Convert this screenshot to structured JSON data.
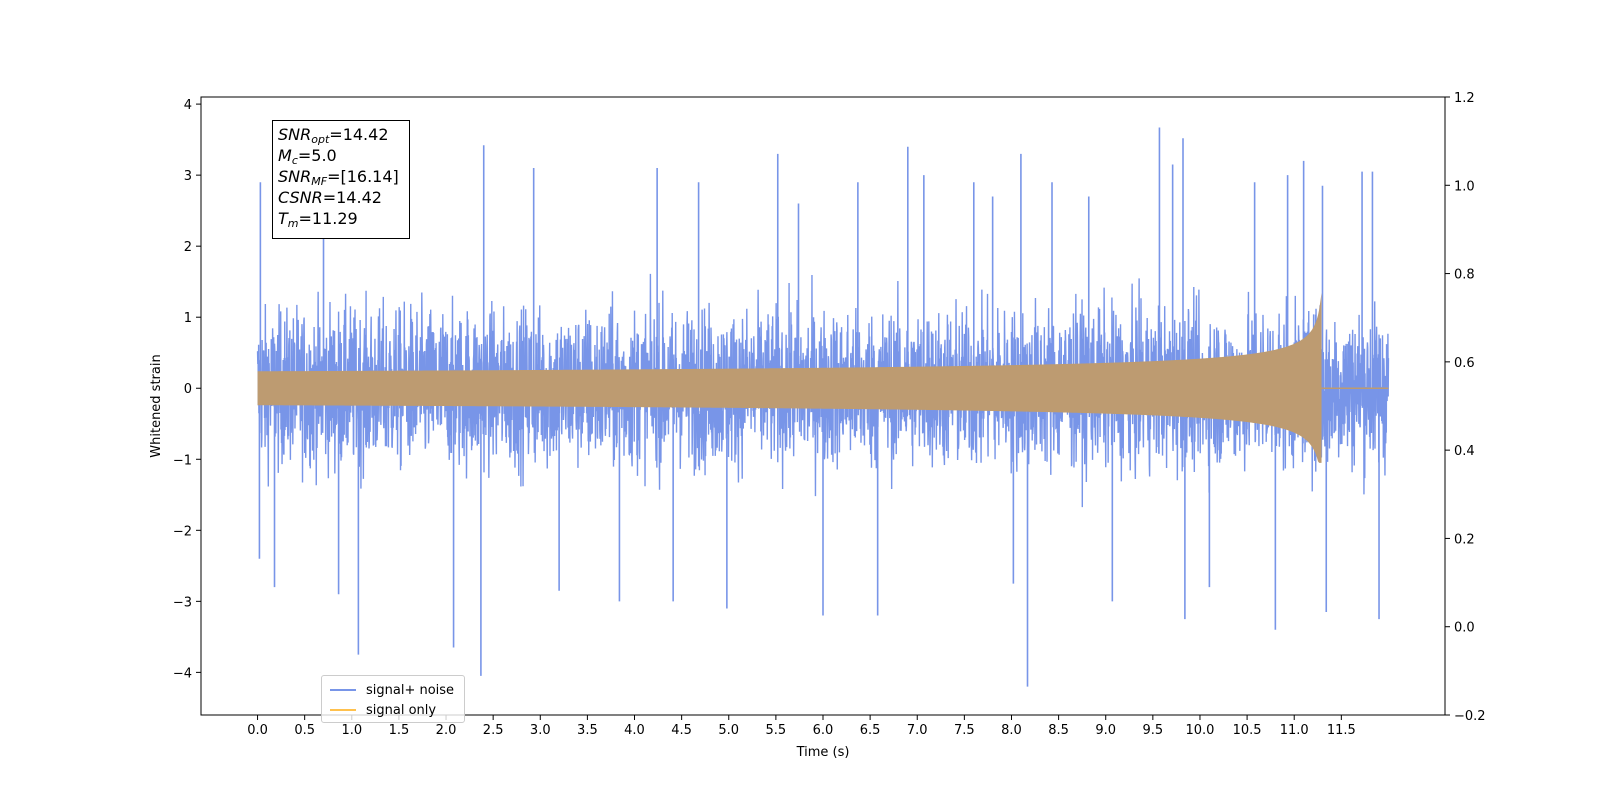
{
  "chart_data": {
    "type": "line",
    "title": "",
    "xlabel": "Time (s)",
    "ylabel": "Whitened strain",
    "xlim": [
      -0.6,
      12.6
    ],
    "ylim": [
      -4.6,
      4.1
    ],
    "y2lim": [
      -0.2,
      1.2
    ],
    "x_ticks": [
      "0.0",
      "0.5",
      "1.0",
      "1.5",
      "2.0",
      "2.5",
      "3.0",
      "3.5",
      "4.0",
      "4.5",
      "5.0",
      "5.5",
      "6.0",
      "6.5",
      "7.0",
      "7.5",
      "8.0",
      "8.5",
      "9.0",
      "9.5",
      "10.0",
      "10.5",
      "11.0",
      "11.5"
    ],
    "y_ticks": [
      "−4",
      "−3",
      "−2",
      "−1",
      "0",
      "1",
      "2",
      "3",
      "4"
    ],
    "y2_ticks": [
      "−0.2",
      "0.0",
      "0.2",
      "0.4",
      "0.6",
      "0.8",
      "1.0",
      "1.2"
    ],
    "grid": false,
    "legend_position": "lower-left",
    "series": [
      {
        "name": "signal+ noise",
        "color": "#7895e8",
        "x_range": [
          0.0,
          12.0
        ],
        "envelope_typical": 1.7,
        "peaks": [
          [
            0.03,
            2.9
          ],
          [
            0.02,
            -2.4
          ],
          [
            0.18,
            -2.8
          ],
          [
            0.7,
            2.3
          ],
          [
            0.86,
            -2.9
          ],
          [
            1.07,
            -3.75
          ],
          [
            2.08,
            -3.65
          ],
          [
            2.4,
            3.42
          ],
          [
            2.37,
            -4.05
          ],
          [
            2.93,
            3.1
          ],
          [
            3.2,
            -2.85
          ],
          [
            3.84,
            -3.0
          ],
          [
            4.24,
            3.1
          ],
          [
            4.41,
            -3.0
          ],
          [
            4.68,
            2.9
          ],
          [
            4.98,
            -3.1
          ],
          [
            5.52,
            3.3
          ],
          [
            5.74,
            2.6
          ],
          [
            6.0,
            -3.2
          ],
          [
            6.37,
            2.9
          ],
          [
            6.58,
            -3.2
          ],
          [
            6.9,
            3.4
          ],
          [
            7.07,
            3.0
          ],
          [
            7.6,
            2.9
          ],
          [
            7.8,
            2.7
          ],
          [
            8.02,
            -2.75
          ],
          [
            8.1,
            3.3
          ],
          [
            8.17,
            -4.2
          ],
          [
            8.43,
            2.9
          ],
          [
            8.82,
            2.7
          ],
          [
            9.07,
            -3.0
          ],
          [
            9.57,
            3.67
          ],
          [
            9.71,
            3.15
          ],
          [
            9.82,
            3.52
          ],
          [
            9.84,
            -3.25
          ],
          [
            10.1,
            -2.8
          ],
          [
            10.58,
            2.9
          ],
          [
            10.8,
            -3.4
          ],
          [
            10.93,
            3.0
          ],
          [
            11.1,
            3.2
          ],
          [
            11.34,
            -3.15
          ],
          [
            11.3,
            2.85
          ],
          [
            11.72,
            3.05
          ],
          [
            11.83,
            3.05
          ],
          [
            11.9,
            -3.25
          ]
        ]
      },
      {
        "name": "signal only",
        "color": "#ffc14d",
        "merge_time": 11.29,
        "amplitude_start": 0.06,
        "amplitude_peak": 1.42,
        "amplitude_trough": -1.05
      }
    ]
  },
  "info_box": {
    "snr_opt_sym": "SNR",
    "snr_opt_sub": "opt",
    "snr_opt_value": "=14.42",
    "mc_sym": "M",
    "mc_sub": "c",
    "mc_value": "=5.0",
    "snr_mf_sym": "SNR",
    "snr_mf_sub": "MF",
    "snr_mf_value": "=[16.14]",
    "csnr_sym": "CSNR",
    "csnr_value": "=14.42",
    "tm_sym": "T",
    "tm_sub": "m",
    "tm_value": "=11.29"
  },
  "legend": {
    "item1": "signal+ noise",
    "item2": "signal only"
  }
}
